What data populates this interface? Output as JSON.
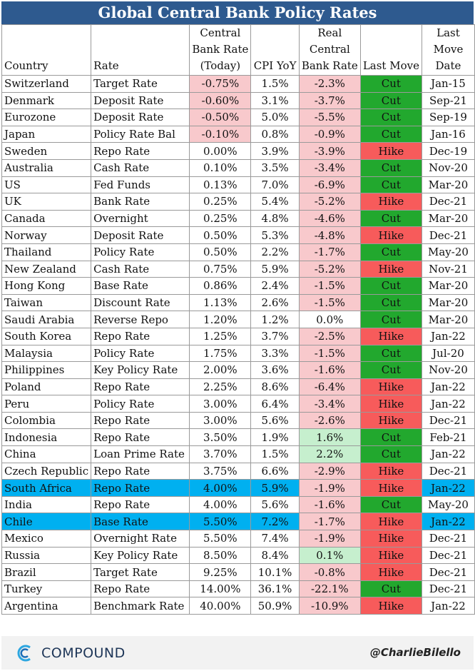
{
  "title": "Global Central Bank Policy Rates",
  "headers": {
    "country": "Country",
    "rate": "Rate",
    "cbr": [
      "Central",
      "Bank Rate",
      "(Today)"
    ],
    "cpi": "CPI YoY",
    "real": [
      "Real",
      "Central",
      "Bank Rate"
    ],
    "last_move": "Last Move",
    "last_move_date": [
      "Last",
      "Move",
      "Date"
    ]
  },
  "rows": [
    {
      "country": "Switzerland",
      "rate": "Target Rate",
      "cbr": "-0.75%",
      "cpi": "1.5%",
      "real": "-2.3%",
      "move": "Cut",
      "date": "Jan-15"
    },
    {
      "country": "Denmark",
      "rate": "Deposit Rate",
      "cbr": "-0.60%",
      "cpi": "3.1%",
      "real": "-3.7%",
      "move": "Cut",
      "date": "Sep-21"
    },
    {
      "country": "Eurozone",
      "rate": "Deposit Rate",
      "cbr": "-0.50%",
      "cpi": "5.0%",
      "real": "-5.5%",
      "move": "Cut",
      "date": "Sep-19"
    },
    {
      "country": "Japan",
      "rate": "Policy Rate Bal",
      "cbr": "-0.10%",
      "cpi": "0.8%",
      "real": "-0.9%",
      "move": "Cut",
      "date": "Jan-16"
    },
    {
      "country": "Sweden",
      "rate": "Repo Rate",
      "cbr": "0.00%",
      "cpi": "3.9%",
      "real": "-3.9%",
      "move": "Hike",
      "date": "Dec-19"
    },
    {
      "country": "Australia",
      "rate": "Cash Rate",
      "cbr": "0.10%",
      "cpi": "3.5%",
      "real": "-3.4%",
      "move": "Cut",
      "date": "Nov-20"
    },
    {
      "country": "US",
      "rate": "Fed Funds",
      "cbr": "0.13%",
      "cpi": "7.0%",
      "real": "-6.9%",
      "move": "Cut",
      "date": "Mar-20"
    },
    {
      "country": "UK",
      "rate": "Bank Rate",
      "cbr": "0.25%",
      "cpi": "5.4%",
      "real": "-5.2%",
      "move": "Hike",
      "date": "Dec-21"
    },
    {
      "country": "Canada",
      "rate": "Overnight",
      "cbr": "0.25%",
      "cpi": "4.8%",
      "real": "-4.6%",
      "move": "Cut",
      "date": "Mar-20"
    },
    {
      "country": "Norway",
      "rate": "Deposit Rate",
      "cbr": "0.50%",
      "cpi": "5.3%",
      "real": "-4.8%",
      "move": "Hike",
      "date": "Dec-21"
    },
    {
      "country": "Thailand",
      "rate": "Policy Rate",
      "cbr": "0.50%",
      "cpi": "2.2%",
      "real": "-1.7%",
      "move": "Cut",
      "date": "May-20"
    },
    {
      "country": "New Zealand",
      "rate": "Cash Rate",
      "cbr": "0.75%",
      "cpi": "5.9%",
      "real": "-5.2%",
      "move": "Hike",
      "date": "Nov-21"
    },
    {
      "country": "Hong Kong",
      "rate": "Base Rate",
      "cbr": "0.86%",
      "cpi": "2.4%",
      "real": "-1.5%",
      "move": "Cut",
      "date": "Mar-20"
    },
    {
      "country": "Taiwan",
      "rate": "Discount Rate",
      "cbr": "1.13%",
      "cpi": "2.6%",
      "real": "-1.5%",
      "move": "Cut",
      "date": "Mar-20"
    },
    {
      "country": "Saudi Arabia",
      "rate": "Reverse Repo",
      "cbr": "1.20%",
      "cpi": "1.2%",
      "real": "0.0%",
      "move": "Cut",
      "date": "Mar-20"
    },
    {
      "country": "South Korea",
      "rate": "Repo Rate",
      "cbr": "1.25%",
      "cpi": "3.7%",
      "real": "-2.5%",
      "move": "Hike",
      "date": "Jan-22"
    },
    {
      "country": "Malaysia",
      "rate": "Policy Rate",
      "cbr": "1.75%",
      "cpi": "3.3%",
      "real": "-1.5%",
      "move": "Cut",
      "date": "Jul-20"
    },
    {
      "country": "Philippines",
      "rate": "Key Policy Rate",
      "cbr": "2.00%",
      "cpi": "3.6%",
      "real": "-1.6%",
      "move": "Cut",
      "date": "Nov-20"
    },
    {
      "country": "Poland",
      "rate": "Repo Rate",
      "cbr": "2.25%",
      "cpi": "8.6%",
      "real": "-6.4%",
      "move": "Hike",
      "date": "Jan-22"
    },
    {
      "country": "Peru",
      "rate": "Policy Rate",
      "cbr": "3.00%",
      "cpi": "6.4%",
      "real": "-3.4%",
      "move": "Hike",
      "date": "Jan-22"
    },
    {
      "country": "Colombia",
      "rate": "Repo Rate",
      "cbr": "3.00%",
      "cpi": "5.6%",
      "real": "-2.6%",
      "move": "Hike",
      "date": "Dec-21"
    },
    {
      "country": "Indonesia",
      "rate": "Repo Rate",
      "cbr": "3.50%",
      "cpi": "1.9%",
      "real": "1.6%",
      "move": "Cut",
      "date": "Feb-21"
    },
    {
      "country": "China",
      "rate": "Loan Prime Rate",
      "cbr": "3.70%",
      "cpi": "1.5%",
      "real": "2.2%",
      "move": "Cut",
      "date": "Jan-22"
    },
    {
      "country": "Czech Republic",
      "rate": "Repo Rate",
      "cbr": "3.75%",
      "cpi": "6.6%",
      "real": "-2.9%",
      "move": "Hike",
      "date": "Dec-21"
    },
    {
      "country": "South Africa",
      "rate": "Repo Rate",
      "cbr": "4.00%",
      "cpi": "5.9%",
      "real": "-1.9%",
      "move": "Hike",
      "date": "Jan-22",
      "highlight": true
    },
    {
      "country": "India",
      "rate": "Repo Rate",
      "cbr": "4.00%",
      "cpi": "5.6%",
      "real": "-1.6%",
      "move": "Cut",
      "date": "May-20"
    },
    {
      "country": "Chile",
      "rate": "Base Rate",
      "cbr": "5.50%",
      "cpi": "7.2%",
      "real": "-1.7%",
      "move": "Hike",
      "date": "Jan-22",
      "highlight": true
    },
    {
      "country": "Mexico",
      "rate": "Overnight Rate",
      "cbr": "5.50%",
      "cpi": "7.4%",
      "real": "-1.9%",
      "move": "Hike",
      "date": "Dec-21"
    },
    {
      "country": "Russia",
      "rate": "Key Policy Rate",
      "cbr": "8.50%",
      "cpi": "8.4%",
      "real": "0.1%",
      "move": "Hike",
      "date": "Dec-21"
    },
    {
      "country": "Brazil",
      "rate": "Target Rate",
      "cbr": "9.25%",
      "cpi": "10.1%",
      "real": "-0.8%",
      "move": "Hike",
      "date": "Dec-21"
    },
    {
      "country": "Turkey",
      "rate": "Repo Rate",
      "cbr": "14.00%",
      "cpi": "36.1%",
      "real": "-22.1%",
      "move": "Cut",
      "date": "Dec-21"
    },
    {
      "country": "Argentina",
      "rate": "Benchmark Rate",
      "cbr": "40.00%",
      "cpi": "50.9%",
      "real": "-10.9%",
      "move": "Hike",
      "date": "Jan-22"
    }
  ],
  "colors": {
    "title_bg": "#2e5a8f",
    "negative_bg": "#f8c9cc",
    "positive_bg": "#c6efce",
    "cut_bg": "#22a82e",
    "hike_bg": "#f75b5b",
    "highlight_bg": "#00b0f0"
  },
  "footer": {
    "logo_text": "COMPOUND",
    "logo_icon": "compound-c-icon",
    "handle": "@CharlieBilello"
  }
}
